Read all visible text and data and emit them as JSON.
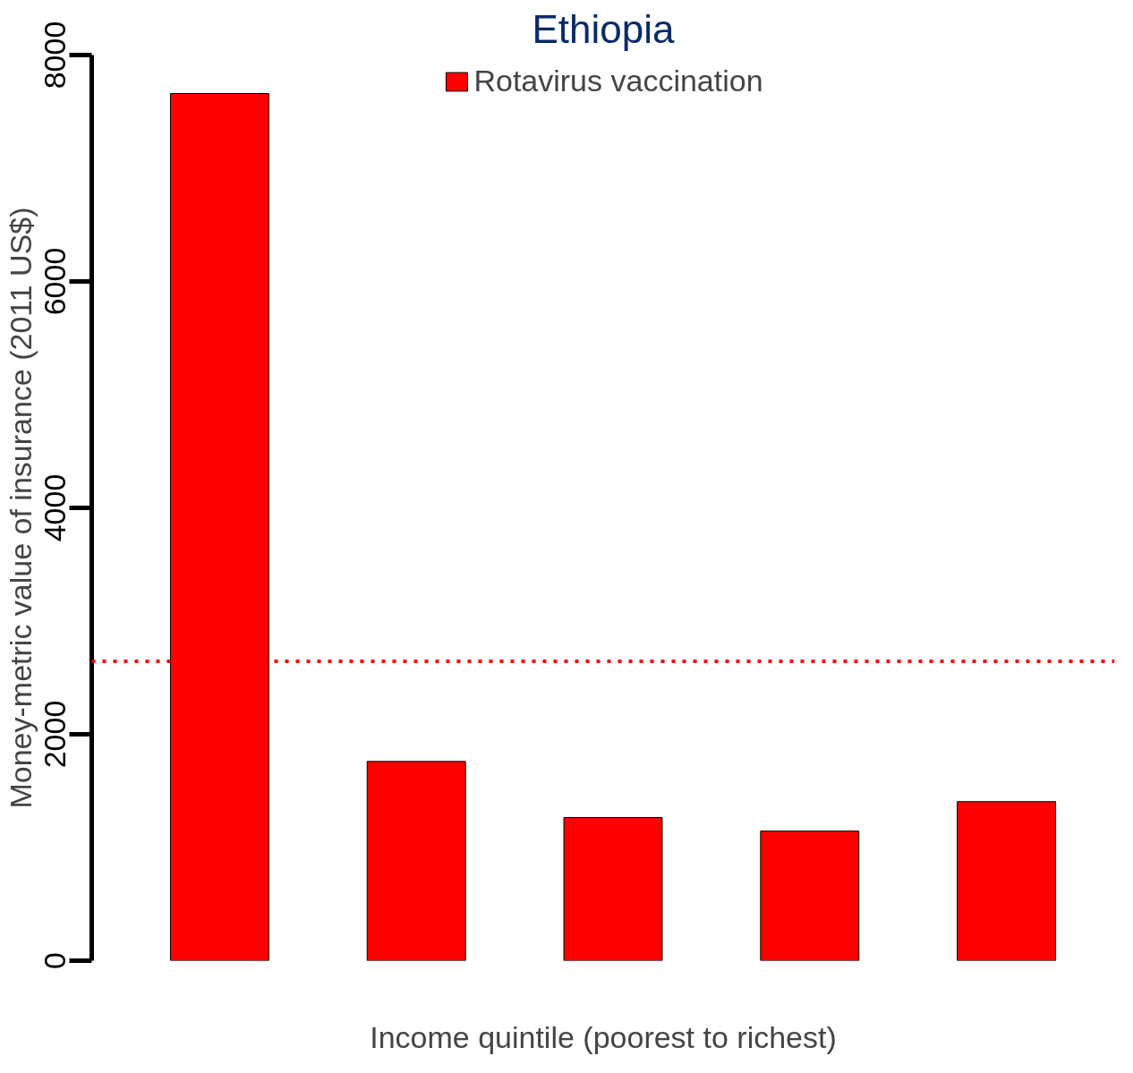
{
  "chart_data": {
    "type": "bar",
    "title": "Ethiopia",
    "xlabel": "Income quintile (poorest to richest)",
    "ylabel": "Money-metric value of insurance (2011 US$)",
    "categories": [
      null,
      null,
      null,
      null,
      null
    ],
    "series": [
      {
        "name": "Rotavirus vaccination",
        "color": "#ff0000",
        "values": [
          7660,
          1760,
          1265,
          1145,
          1405
        ]
      }
    ],
    "ylim": [
      0,
      8000
    ],
    "yticks": [
      0,
      2000,
      4000,
      6000,
      8000
    ],
    "ref_lines": [
      {
        "axis": "y",
        "value": 2645,
        "color": "#ff0000",
        "line_style": "dotted"
      }
    ],
    "tick_labels": "y",
    "legend": "top",
    "grid": false
  }
}
